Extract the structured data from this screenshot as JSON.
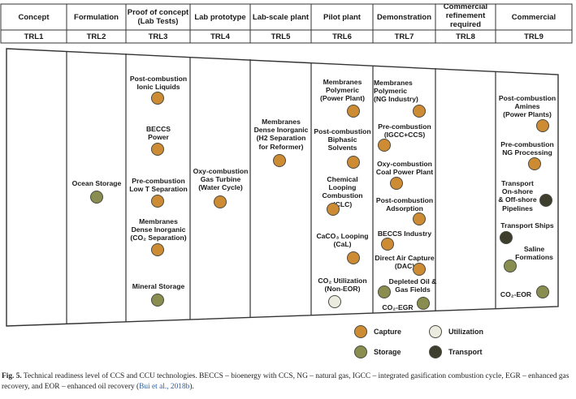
{
  "header": {
    "stages": [
      {
        "label": "Concept",
        "trl": "TRL1"
      },
      {
        "label": "Formulation",
        "trl": "TRL2"
      },
      {
        "label": "Proof of concept\n(Lab Tests)",
        "trl": "TRL3"
      },
      {
        "label": "Lab prototype",
        "trl": "TRL4"
      },
      {
        "label": "Lab-scale plant",
        "trl": "TRL5"
      },
      {
        "label": "Pilot plant",
        "trl": "TRL6"
      },
      {
        "label": "Demonstration",
        "trl": "TRL7"
      },
      {
        "label": "Commercial\nrefinement\nrequired",
        "trl": "TRL8"
      },
      {
        "label": "Commercial",
        "trl": "TRL9"
      }
    ]
  },
  "technologies": {
    "trl2": {
      "ocean_storage": "Ocean Storage"
    },
    "trl3": {
      "ionic_liquids": "Post-combustion\nIonic Liquids",
      "beccs_power": "BECCS\nPower",
      "low_t_separation": "Pre-combustion\nLow T Separation",
      "membranes_co2": "Membranes\nDense Inorganic\n(CO₂ Separation)",
      "mineral_storage": "Mineral Storage"
    },
    "trl4": {
      "gas_turbine": "Oxy-combustion\nGas Turbine\n(Water Cycle)"
    },
    "trl5": {
      "membranes_h2": "Membranes\nDense Inorganic\n(H2 Separation\nfor Reformer)"
    },
    "trl6": {
      "membranes_power": "Membranes\nPolymeric\n(Power Plant)",
      "biphasic": "Post-combustion\nBiphasic\nSolvents",
      "clc": "Chemical\nLooping\nCombustion\n(CLC)",
      "cal": "CaCO₃ Looping\n(CaL)",
      "co2_util": "CO₂ Utilization\n(Non-EOR)"
    },
    "trl7": {
      "membranes_ng": "Membranes\nPolymeric\n(NG Industry)",
      "igcc": "Pre-combustion\n(IGCC+CCS)",
      "coal_power": "Oxy-combustion\nCoal Power Plant",
      "adsorption": "Post-combustion\nAdsorption",
      "beccs_industry": "BECCS Industry",
      "dac": "Direct Air Capture\n(DAC)",
      "depleted": "Depleted Oil &\nGas Fields",
      "egr": "CO₂-EGR"
    },
    "trl9": {
      "amines": "Post-combustion\nAmines\n(Power Plants)",
      "ng_processing": "Pre-combustion\nNG Processing",
      "pipelines": "Transport\nOn-shore\n& Off-shore\nPipelines",
      "ships": "Transport Ships",
      "saline": "Saline\nFormations",
      "eor": "CO₂-EOR"
    }
  },
  "legend": {
    "capture": "Capture",
    "utilization": "Utilization",
    "storage": "Storage",
    "transport": "Transport"
  },
  "colors": {
    "capture": "#cd8b34",
    "storage": "#8a8d50",
    "utilization": "#ecebe0",
    "transport": "#3e3e2e"
  },
  "caption": {
    "label": "Fig. 5.",
    "text": " Technical readiness level of CCS and CCU technologies. BECCS – bioenergy with CCS, NG – natural gas, IGCC – integrated gasification combustion cycle, EGR – enhanced gas recovery, and EOR – enhanced oil recovery (",
    "citation": "Bui et al., 2018b",
    "end": ")."
  }
}
